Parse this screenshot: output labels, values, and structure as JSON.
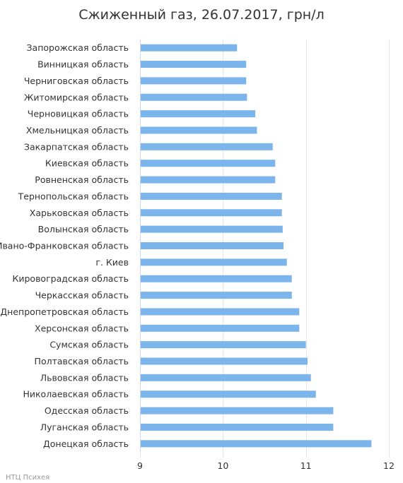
{
  "chart_data": {
    "type": "bar",
    "orientation": "horizontal",
    "title": "Сжиженный газ, 26.07.2017, грн/л",
    "categories": [
      "Запорожская область",
      "Винницкая область",
      "Черниговская область",
      "Житомирская область",
      "Черновицкая область",
      "Хмельницкая область",
      "Закарпатская область",
      "Киевская область",
      "Ровненская область",
      "Тернопольская область",
      "Харьковская область",
      "Волынская область",
      "Ивано-Франковская область",
      "г. Киев",
      "Кировоградская область",
      "Черкасская область",
      "Днепропетровская область",
      "Херсонская область",
      "Сумская область",
      "Полтавская область",
      "Львовская область",
      "Николаевская область",
      "Одесская область",
      "Луганская область",
      "Донецкая область"
    ],
    "values": [
      10.17,
      10.28,
      10.28,
      10.29,
      10.39,
      10.41,
      10.6,
      10.63,
      10.63,
      10.71,
      10.71,
      10.72,
      10.73,
      10.77,
      10.83,
      10.83,
      10.92,
      10.92,
      11.0,
      11.02,
      11.06,
      11.12,
      11.33,
      11.33,
      11.79
    ],
    "xlim": [
      9,
      12
    ],
    "xticks": [
      9,
      10,
      11,
      12
    ],
    "xtick_labels": [
      "9",
      "10",
      "11",
      "12"
    ],
    "grid": true,
    "bar_color": "#7cb5ec"
  },
  "credit": "НТЦ Психея"
}
